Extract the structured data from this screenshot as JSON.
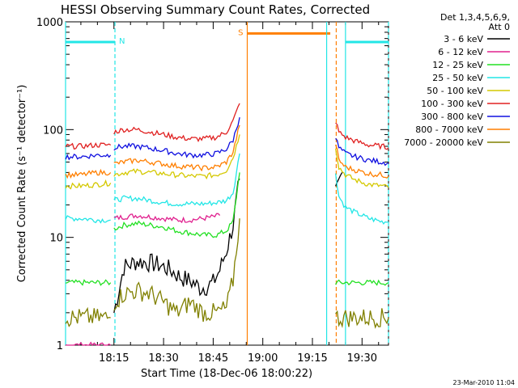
{
  "chart_data": {
    "type": "line",
    "title": "HESSI Observing Summary Count Rates, Corrected",
    "xlabel": "Start Time (18-Dec-06 18:00:22)",
    "ylabel": "Corrected Count Rate (s⁻¹ detector⁻¹)",
    "yscale": "log",
    "ylim": [
      1,
      1000
    ],
    "xlim_minutes_after_18h": [
      0.37,
      98.0
    ],
    "x_ticks": [
      {
        "label": "18:15",
        "value": 15
      },
      {
        "label": "18:30",
        "value": 30
      },
      {
        "label": "18:45",
        "value": 45
      },
      {
        "label": "19:00",
        "value": 60
      },
      {
        "label": "19:15",
        "value": 75
      },
      {
        "label": "19:30",
        "value": 90
      }
    ],
    "y_ticks": [
      {
        "label": "1",
        "value": 1
      },
      {
        "label": "10",
        "value": 10
      },
      {
        "label": "100",
        "value": 100
      },
      {
        "label": "1000",
        "value": 1000
      }
    ],
    "legend_header": [
      "Det 1,3,4,5,6,9,",
      "Att 0"
    ],
    "legend_position": "right",
    "series": [
      {
        "name": "3 - 6 keV",
        "color": "#000000",
        "segments": [
          {
            "x": [
              15,
              18,
              22,
              26,
              29,
              32,
              35,
              39,
              41,
              43,
              45,
              47,
              49,
              51,
              53
            ],
            "y": [
              2.0,
              5.3,
              6.0,
              5.8,
              5.5,
              5.0,
              4.3,
              3.8,
              3.4,
              3.5,
              3.8,
              5.0,
              7.5,
              13,
              35
            ]
          },
          {
            "x": [
              82,
              84
            ],
            "y": [
              25,
              40
            ]
          }
        ]
      },
      {
        "name": "6 - 12 keV",
        "color": "#e0208e",
        "segments": [
          {
            "x": [
              0.4,
              7,
              12,
              14
            ],
            "y": [
              1.0,
              1.0,
              1.0,
              1.0
            ]
          },
          {
            "x": [
              15,
              18,
              22,
              26,
              30,
              34,
              38,
              42,
              45,
              47
            ],
            "y": [
              15,
              15.5,
              16,
              15.5,
              15,
              14.5,
              14.5,
              15,
              15.5,
              16
            ]
          }
        ]
      },
      {
        "name": "12 - 25 keV",
        "color": "#22e022",
        "segments": [
          {
            "x": [
              0.4,
              5,
              10,
              14
            ],
            "y": [
              3.8,
              3.8,
              3.8,
              3.8
            ]
          },
          {
            "x": [
              15,
              18,
              22,
              26,
              30,
              34,
              38,
              42,
              46,
              49,
              51,
              53
            ],
            "y": [
              12,
              13,
              13.5,
              13,
              12.5,
              11.5,
              11,
              10.5,
              10.5,
              11.5,
              14,
              40
            ]
          },
          {
            "x": [
              82,
              84,
              88,
              92,
              96,
              98
            ],
            "y": [
              3.8,
              3.8,
              3.8,
              3.8,
              3.8,
              3.8
            ]
          }
        ]
      },
      {
        "name": "25 - 50 keV",
        "color": "#22e6e6",
        "segments": [
          {
            "x": [
              0.4,
              5,
              10,
              14
            ],
            "y": [
              15,
              15,
              14.5,
              14.5
            ]
          },
          {
            "x": [
              15,
              18,
              22,
              26,
              30,
              34,
              38,
              42,
              46,
              49,
              51,
              53
            ],
            "y": [
              22,
              23,
              23,
              22,
              21,
              20.5,
              20.5,
              20.5,
              21,
              22,
              26,
              60
            ]
          },
          {
            "x": [
              82,
              83,
              85,
              88,
              92,
              96,
              98
            ],
            "y": [
              40,
              24,
              19,
              17,
              15,
              14,
              14
            ]
          }
        ]
      },
      {
        "name": "50 - 100 keV",
        "color": "#d4c800",
        "segments": [
          {
            "x": [
              0.4,
              5,
              10,
              14
            ],
            "y": [
              30,
              30,
              31,
              32
            ]
          },
          {
            "x": [
              15,
              18,
              22,
              26,
              30,
              34,
              38,
              42,
              46,
              49,
              51,
              53
            ],
            "y": [
              38,
              40,
              41,
              40,
              39,
              38,
              37,
              37,
              38,
              42,
              55,
              90
            ]
          },
          {
            "x": [
              82,
              83,
              85,
              88,
              92,
              96,
              98
            ],
            "y": [
              70,
              45,
              38,
              34,
              31,
              30,
              29
            ]
          }
        ]
      },
      {
        "name": "100 - 300 keV",
        "color": "#e02020",
        "segments": [
          {
            "x": [
              0.4,
              5,
              10,
              14
            ],
            "y": [
              70,
              70,
              72,
              72
            ]
          },
          {
            "x": [
              15,
              18,
              22,
              26,
              30,
              34,
              38,
              42,
              46,
              49,
              51,
              53
            ],
            "y": [
              95,
              100,
              100,
              95,
              90,
              85,
              82,
              82,
              85,
              95,
              120,
              175
            ]
          },
          {
            "x": [
              82,
              83,
              85,
              88,
              92,
              96,
              98
            ],
            "y": [
              120,
              95,
              85,
              78,
              72,
              70,
              68
            ]
          }
        ]
      },
      {
        "name": "300 - 800 keV",
        "color": "#1010e0",
        "segments": [
          {
            "x": [
              0.4,
              5,
              10,
              14
            ],
            "y": [
              56,
              56,
              58,
              58
            ]
          },
          {
            "x": [
              15,
              18,
              22,
              26,
              30,
              34,
              38,
              42,
              46,
              49,
              51,
              53
            ],
            "y": [
              68,
              70,
              70,
              67,
              64,
              60,
              58,
              58,
              60,
              66,
              80,
              130
            ]
          },
          {
            "x": [
              82,
              83,
              85,
              88,
              92,
              96,
              98
            ],
            "y": [
              85,
              68,
              60,
              56,
              52,
              50,
              49
            ]
          }
        ]
      },
      {
        "name": "800 - 7000 keV",
        "color": "#ff7f00",
        "segments": [
          {
            "x": [
              0.4,
              5,
              10,
              14
            ],
            "y": [
              38,
              38,
              40,
              40
            ]
          },
          {
            "x": [
              15,
              18,
              22,
              26,
              30,
              34,
              38,
              42,
              46,
              49,
              51,
              53
            ],
            "y": [
              48,
              50,
              52,
              50,
              48,
              46,
              45,
              44,
              45,
              50,
              62,
              110
            ]
          },
          {
            "x": [
              82,
              83,
              85,
              88,
              92,
              96,
              98
            ],
            "y": [
              75,
              52,
              45,
              42,
              39,
              38,
              37
            ]
          }
        ]
      },
      {
        "name": "7000 - 20000 keV",
        "color": "#808000",
        "segments": [
          {
            "x": [
              0.4,
              5,
              10,
              14
            ],
            "y": [
              1.8,
              1.8,
              1.8,
              1.8
            ]
          },
          {
            "x": [
              15,
              18,
              22,
              26,
              30,
              34,
              38,
              42,
              46,
              49,
              51,
              53
            ],
            "y": [
              2.5,
              3.0,
              3.2,
              3.0,
              2.5,
              2.0,
              2.5,
              2.0,
              2.0,
              2.2,
              4.0,
              15
            ]
          },
          {
            "x": [
              82,
              84,
              88,
              92,
              96,
              98
            ],
            "y": [
              1.8,
              1.8,
              1.8,
              1.8,
              1.8,
              1.8
            ]
          }
        ]
      }
    ],
    "flags": [
      {
        "label": "N",
        "color": "#22e6e6",
        "x_start": 0.37,
        "x_end": 15.3,
        "y": 650,
        "start_line": "solid",
        "end_line": "dashed"
      },
      {
        "label": "S",
        "color": "#ff7f00",
        "x_start": 55.3,
        "x_end": 80.4,
        "y": 780,
        "start_line": "solid",
        "end_line": "none"
      },
      {
        "label": "",
        "color": "#22e6e6",
        "x_start": 85.0,
        "x_end": 98.0,
        "y": 650,
        "start_line": "solid",
        "end_line": "dashed"
      }
    ],
    "extra_lines": [
      {
        "x": 79.3,
        "color": "#22e6e6",
        "style": "solid"
      },
      {
        "x": 82.2,
        "color": "#ff7f00",
        "style": "dashed"
      }
    ],
    "timestamp": "23-Mar-2010 11:04"
  }
}
